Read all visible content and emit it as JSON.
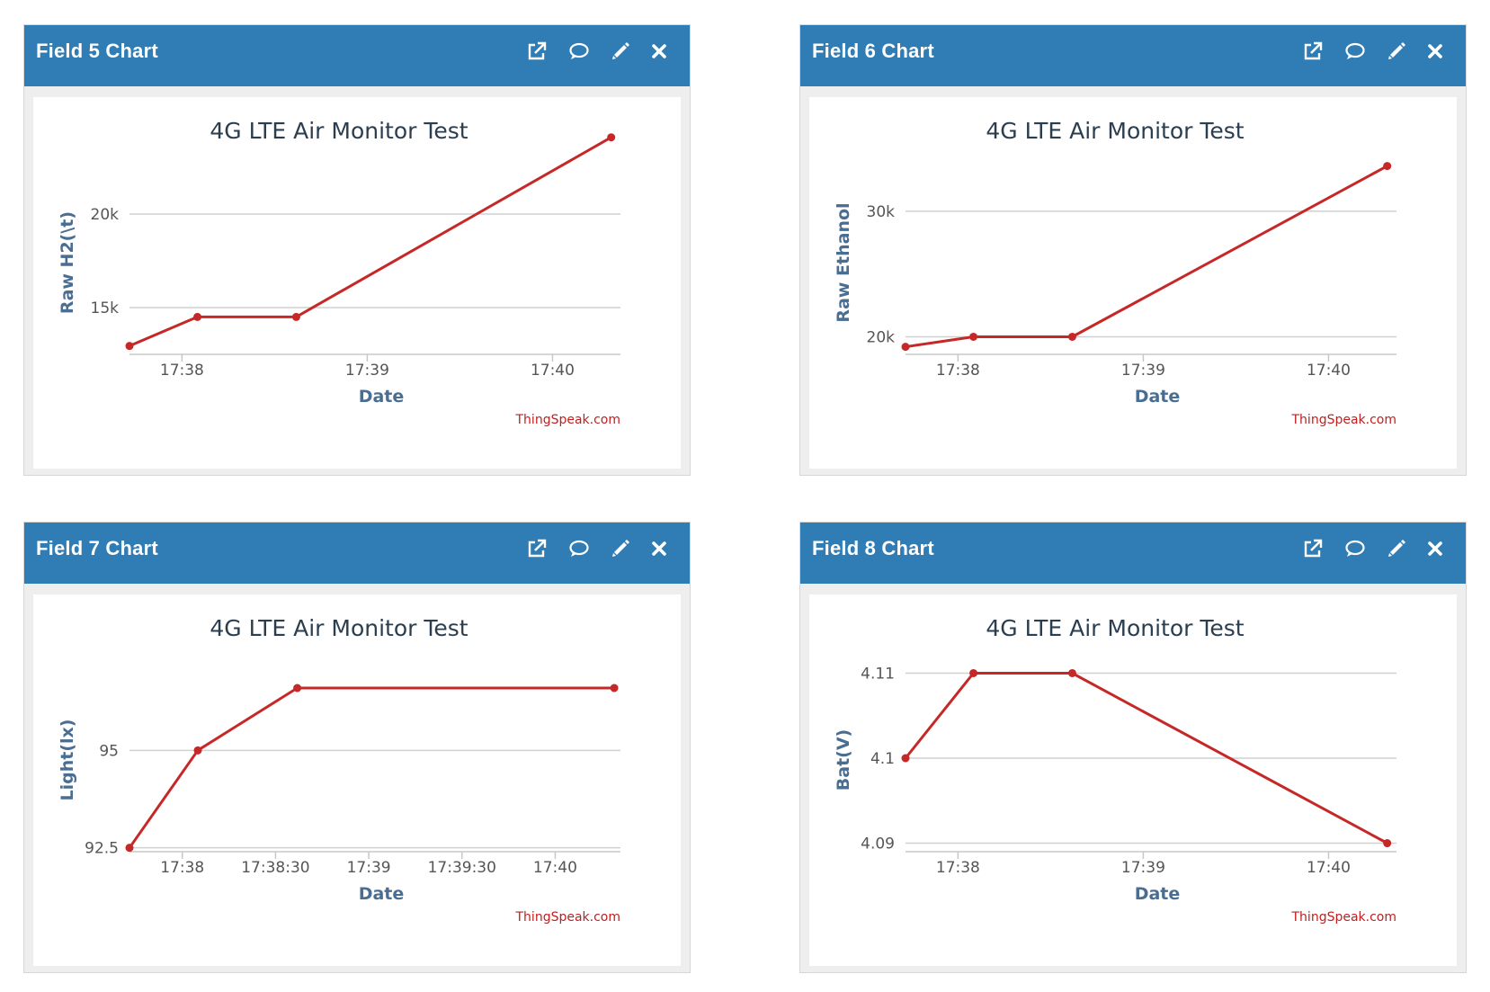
{
  "tools": {
    "popout_icon": "external-link-icon",
    "comment_icon": "speech-bubble-icon",
    "edit_icon": "pencil-icon",
    "close_icon": "close-icon"
  },
  "colors": {
    "header": "#2f7db4",
    "line": "#c62828",
    "grid": "#d0d0d0"
  },
  "panels": [
    {
      "id": "field5",
      "header_title": "Field 5 Chart",
      "chart_data": {
        "type": "line",
        "title": "4G LTE Air Monitor Test",
        "xlabel": "Date",
        "ylabel": "Raw H2(\\t)",
        "credit": "ThingSpeak.com",
        "x_ticks": [
          "17:38",
          "17:39",
          "17:40"
        ],
        "x_tick_sec": [
          0,
          60,
          120
        ],
        "xlim_sec": [
          -17,
          142
        ],
        "y_ticks": [
          15000,
          20000
        ],
        "y_tick_labels": [
          "15k",
          "20k"
        ],
        "ylim": [
          12500,
          22500
        ],
        "points_sec": [
          -17,
          5,
          37,
          139
        ],
        "values": [
          12950,
          14500,
          14500,
          24100
        ]
      }
    },
    {
      "id": "field6",
      "header_title": "Field 6 Chart",
      "chart_data": {
        "type": "line",
        "title": "4G LTE Air Monitor Test",
        "xlabel": "Date",
        "ylabel": "Raw Ethanol",
        "credit": "ThingSpeak.com",
        "x_ticks": [
          "17:38",
          "17:39",
          "17:40"
        ],
        "x_tick_sec": [
          0,
          60,
          120
        ],
        "xlim_sec": [
          -17,
          142
        ],
        "y_ticks": [
          20000,
          30000
        ],
        "y_tick_labels": [
          "20k",
          "30k"
        ],
        "ylim": [
          18600,
          33500
        ],
        "points_sec": [
          -17,
          5,
          37,
          139
        ],
        "values": [
          19200,
          20000,
          20000,
          33600
        ]
      }
    },
    {
      "id": "field7",
      "header_title": "Field 7 Chart",
      "chart_data": {
        "type": "line",
        "title": "4G LTE Air Monitor Test",
        "xlabel": "Date",
        "ylabel": "Light(lx)",
        "credit": "ThingSpeak.com",
        "x_ticks": [
          "17:38",
          "17:38:30",
          "17:39",
          "17:39:30",
          "17:40"
        ],
        "x_tick_sec": [
          0,
          30,
          60,
          90,
          120
        ],
        "xlim_sec": [
          -17,
          141
        ],
        "y_ticks": [
          92.5,
          95
        ],
        "y_tick_labels": [
          "92.5",
          "95"
        ],
        "ylim": [
          92.4,
          97.2
        ],
        "points_sec": [
          -17,
          5,
          37,
          139
        ],
        "values": [
          92.5,
          95,
          96.6,
          96.6
        ]
      }
    },
    {
      "id": "field8",
      "header_title": "Field 8 Chart",
      "chart_data": {
        "type": "line",
        "title": "4G LTE Air Monitor Test",
        "xlabel": "Date",
        "ylabel": "Bat(V)",
        "credit": "ThingSpeak.com",
        "x_ticks": [
          "17:38",
          "17:39",
          "17:40"
        ],
        "x_tick_sec": [
          0,
          60,
          120
        ],
        "xlim_sec": [
          -17,
          142
        ],
        "y_ticks": [
          4.09,
          4.1,
          4.11
        ],
        "y_tick_labels": [
          "4.09",
          "4.1",
          "4.11"
        ],
        "ylim": [
          4.089,
          4.111
        ],
        "points_sec": [
          -17,
          5,
          37,
          139
        ],
        "values": [
          4.1,
          4.11,
          4.11,
          4.09
        ]
      }
    }
  ]
}
